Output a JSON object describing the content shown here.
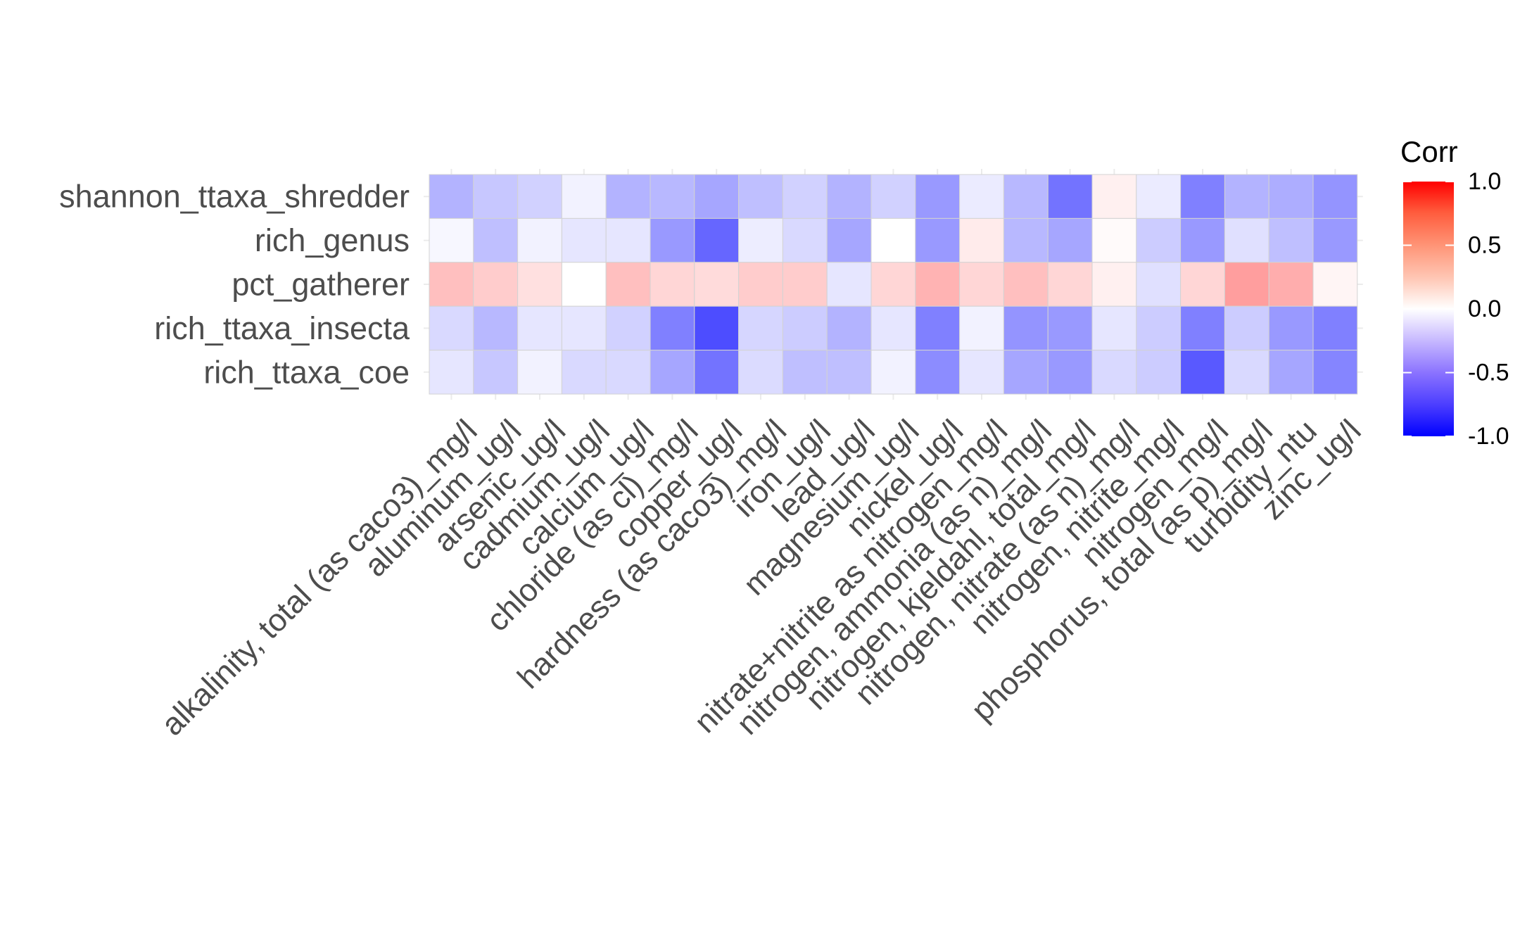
{
  "chart_data": {
    "type": "heatmap",
    "title": "",
    "xlabel": "",
    "ylabel": "",
    "x_categories": [
      "alkalinity, total (as caco3)_mg/l",
      "aluminum_ug/l",
      "arsenic_ug/l",
      "cadmium_ug/l",
      "calcium_ug/l",
      "chloride (as cl)_mg/l",
      "copper_ug/l",
      "hardness (as caco3)_mg/l",
      "iron_ug/l",
      "lead_ug/l",
      "magnesium_ug/l",
      "nickel_ug/l",
      "nitrate+nitrite as nitrogen_mg/l",
      "nitrogen, ammonia (as n)_mg/l",
      "nitrogen, kjeldahl, total_mg/l",
      "nitrogen, nitrate (as n)_mg/l",
      "nitrogen, nitrite_mg/l",
      "nitrogen_mg/l",
      "phosphorus, total (as p)_mg/l",
      "turbidity_ntu",
      "zinc_ug/l"
    ],
    "y_categories": [
      "shannon_ttaxa_shredder",
      "rich_genus",
      "pct_gatherer",
      "rich_ttaxa_insecta",
      "rich_ttaxa_coe"
    ],
    "values": [
      [
        -0.3,
        -0.22,
        -0.18,
        -0.05,
        -0.3,
        -0.28,
        -0.35,
        -0.25,
        -0.18,
        -0.3,
        -0.18,
        -0.4,
        -0.08,
        -0.28,
        -0.55,
        0.06,
        -0.08,
        -0.5,
        -0.3,
        -0.32,
        -0.42
      ],
      [
        -0.03,
        -0.25,
        -0.05,
        -0.1,
        -0.1,
        -0.4,
        -0.6,
        -0.07,
        -0.15,
        -0.35,
        0.0,
        -0.4,
        0.08,
        -0.28,
        -0.35,
        0.02,
        -0.2,
        -0.4,
        -0.12,
        -0.25,
        -0.4
      ],
      [
        0.25,
        0.2,
        0.12,
        0.0,
        0.25,
        0.16,
        0.14,
        0.2,
        0.2,
        -0.1,
        0.16,
        0.3,
        0.16,
        0.25,
        0.16,
        0.06,
        -0.12,
        0.16,
        0.38,
        0.32,
        0.04
      ],
      [
        -0.15,
        -0.28,
        -0.1,
        -0.1,
        -0.18,
        -0.5,
        -0.7,
        -0.16,
        -0.2,
        -0.3,
        -0.1,
        -0.5,
        -0.05,
        -0.42,
        -0.4,
        -0.1,
        -0.2,
        -0.5,
        -0.2,
        -0.4,
        -0.5
      ],
      [
        -0.1,
        -0.22,
        -0.05,
        -0.15,
        -0.15,
        -0.35,
        -0.55,
        -0.14,
        -0.25,
        -0.25,
        -0.05,
        -0.45,
        -0.1,
        -0.35,
        -0.4,
        -0.15,
        -0.2,
        -0.65,
        -0.15,
        -0.35,
        -0.48
      ]
    ],
    "color_scale": {
      "low": "#0000ff",
      "mid": "#ffffff",
      "high": "#ff0000",
      "limits": [
        -1.0,
        1.0
      ]
    },
    "legend": {
      "title": "Corr",
      "position": "right",
      "ticks": [
        "1.0",
        "0.5",
        "0.0",
        "-0.5",
        "-1.0"
      ]
    }
  }
}
